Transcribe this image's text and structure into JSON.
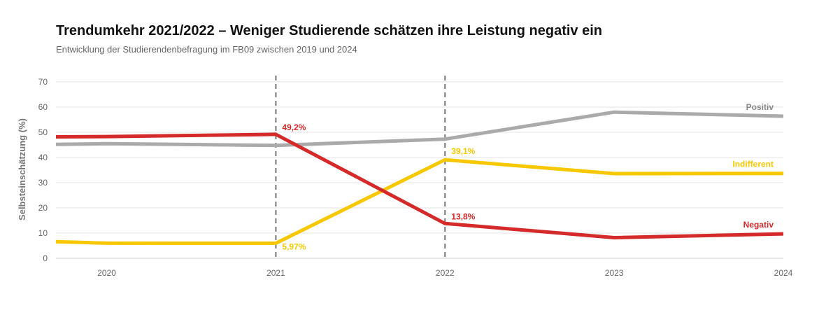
{
  "chart_data": {
    "type": "line",
    "title": "Trendumkehr 2021/2022 – Weniger Studierende schätzen ihre Leistung negativ ein",
    "subtitle": "Entwicklung der Studierendenbefragung im FB09 zwischen 2019 und 2024",
    "ylabel": "Selbsteinschätzung (%)",
    "xlabel": "",
    "xlim": [
      2019.7,
      2024
    ],
    "ylim": [
      0,
      70
    ],
    "yticks": [
      "0",
      "10",
      "20",
      "30",
      "40",
      "50",
      "60",
      "70"
    ],
    "xticks": [
      "2020",
      "2021",
      "2022",
      "2023",
      "2024"
    ],
    "grid": true,
    "vlines": [
      2021,
      2022
    ],
    "series": [
      {
        "name": "Positiv",
        "color": "#aaaaaa",
        "x": [
          2019.7,
          2020,
          2021,
          2022,
          2023,
          2024
        ],
        "y": [
          45.2,
          45.5,
          44.8,
          47.3,
          58.0,
          56.4
        ]
      },
      {
        "name": "Indifferent",
        "color": "#f7c800",
        "x": [
          2019.7,
          2020,
          2021,
          2022,
          2023,
          2024
        ],
        "y": [
          6.6,
          6.0,
          5.97,
          39.1,
          33.6,
          33.7
        ]
      },
      {
        "name": "Negativ",
        "color": "#d42a2a",
        "x": [
          2019.7,
          2020,
          2021,
          2022,
          2023,
          2024
        ],
        "y": [
          48.2,
          48.3,
          49.2,
          13.8,
          8.2,
          9.7
        ]
      }
    ],
    "data_labels": [
      {
        "text": "49,2%",
        "series": "Negativ",
        "x": 2021,
        "y": 49.2,
        "color": "#d42a2a"
      },
      {
        "text": "5,97%",
        "series": "Indifferent",
        "x": 2021,
        "y": 5.97,
        "color": "#f7c800"
      },
      {
        "text": "39,1%",
        "series": "Indifferent",
        "x": 2022,
        "y": 39.1,
        "color": "#f7c800"
      },
      {
        "text": "13,8%",
        "series": "Negativ",
        "x": 2022,
        "y": 13.8,
        "color": "#d42a2a"
      }
    ]
  }
}
